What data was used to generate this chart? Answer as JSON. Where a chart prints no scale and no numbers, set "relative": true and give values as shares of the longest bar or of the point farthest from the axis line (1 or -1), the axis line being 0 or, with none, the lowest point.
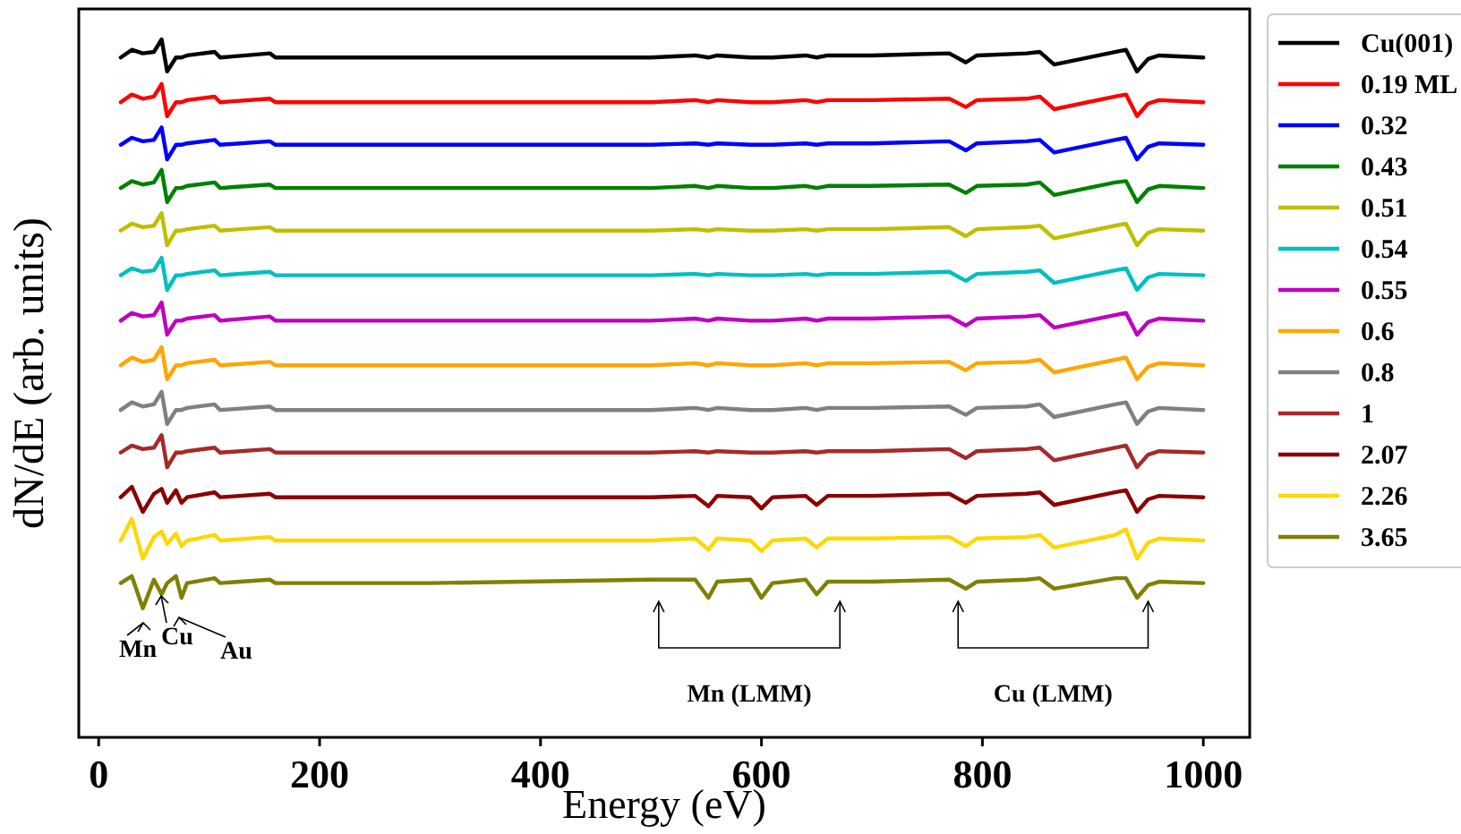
{
  "chart_data": {
    "type": "line",
    "relative": true,
    "xlabel": "Energy (eV)",
    "ylabel": "dN/dE (arb. units)",
    "x": [
      20,
      30,
      40,
      50,
      57,
      62,
      70,
      75,
      80,
      105,
      110,
      155,
      160,
      300,
      500,
      540,
      552,
      560,
      590,
      600,
      610,
      640,
      650,
      660,
      700,
      770,
      785,
      795,
      840,
      852,
      865,
      920,
      930,
      940,
      950,
      960,
      1000
    ],
    "xlim": [
      -18,
      1042
    ],
    "xticks": [
      0,
      200,
      400,
      600,
      800,
      1000
    ],
    "grid": false,
    "legend": "right",
    "tick_labels": "x",
    "annotations": [
      "Mn",
      "Cu",
      "Au",
      "Mn (LMM)",
      "Cu (LMM)"
    ],
    "series": [
      {
        "name": "Cu(001)",
        "color": "#000000",
        "values": [
          0.974,
          0.985,
          0.98,
          0.982,
          1.0,
          0.954,
          0.974,
          0.974,
          0.977,
          0.982,
          0.974,
          0.98,
          0.974,
          0.974,
          0.974,
          0.977,
          0.974,
          0.977,
          0.974,
          0.974,
          0.974,
          0.977,
          0.974,
          0.977,
          0.977,
          0.98,
          0.967,
          0.977,
          0.98,
          0.982,
          0.964,
          0.982,
          0.985,
          0.954,
          0.972,
          0.977,
          0.974
        ]
      },
      {
        "name": "0.19 ML",
        "color": "#ff0000",
        "values": [
          0.91,
          0.921,
          0.915,
          0.918,
          0.936,
          0.89,
          0.91,
          0.91,
          0.913,
          0.918,
          0.91,
          0.915,
          0.91,
          0.91,
          0.91,
          0.913,
          0.91,
          0.913,
          0.91,
          0.91,
          0.91,
          0.913,
          0.91,
          0.913,
          0.913,
          0.915,
          0.903,
          0.913,
          0.915,
          0.918,
          0.9,
          0.918,
          0.921,
          0.89,
          0.908,
          0.913,
          0.91
        ]
      },
      {
        "name": "0.32",
        "color": "#0000ff",
        "values": [
          0.849,
          0.859,
          0.854,
          0.856,
          0.874,
          0.828,
          0.849,
          0.849,
          0.851,
          0.856,
          0.849,
          0.854,
          0.849,
          0.849,
          0.849,
          0.851,
          0.849,
          0.851,
          0.849,
          0.849,
          0.849,
          0.851,
          0.849,
          0.851,
          0.851,
          0.854,
          0.841,
          0.851,
          0.854,
          0.856,
          0.838,
          0.856,
          0.859,
          0.828,
          0.846,
          0.851,
          0.849
        ]
      },
      {
        "name": "0.43",
        "color": "#008000",
        "values": [
          0.787,
          0.797,
          0.792,
          0.795,
          0.813,
          0.767,
          0.787,
          0.787,
          0.79,
          0.795,
          0.787,
          0.792,
          0.787,
          0.787,
          0.787,
          0.79,
          0.787,
          0.79,
          0.787,
          0.787,
          0.787,
          0.79,
          0.787,
          0.79,
          0.79,
          0.792,
          0.78,
          0.79,
          0.792,
          0.795,
          0.777,
          0.795,
          0.797,
          0.767,
          0.785,
          0.79,
          0.787
        ]
      },
      {
        "name": "0.51",
        "color": "#bfbf00",
        "values": [
          0.726,
          0.736,
          0.731,
          0.733,
          0.751,
          0.705,
          0.726,
          0.726,
          0.728,
          0.733,
          0.726,
          0.731,
          0.726,
          0.726,
          0.726,
          0.728,
          0.726,
          0.728,
          0.726,
          0.726,
          0.726,
          0.728,
          0.726,
          0.728,
          0.728,
          0.731,
          0.718,
          0.728,
          0.731,
          0.733,
          0.715,
          0.733,
          0.736,
          0.705,
          0.723,
          0.728,
          0.726
        ]
      },
      {
        "name": "0.54",
        "color": "#00bfbf",
        "values": [
          0.662,
          0.672,
          0.667,
          0.669,
          0.687,
          0.641,
          0.662,
          0.662,
          0.664,
          0.669,
          0.662,
          0.667,
          0.662,
          0.662,
          0.662,
          0.664,
          0.662,
          0.664,
          0.662,
          0.662,
          0.662,
          0.664,
          0.662,
          0.664,
          0.664,
          0.667,
          0.654,
          0.664,
          0.667,
          0.669,
          0.651,
          0.669,
          0.672,
          0.641,
          0.659,
          0.664,
          0.662
        ]
      },
      {
        "name": "0.55",
        "color": "#bf00bf",
        "values": [
          0.597,
          0.608,
          0.603,
          0.605,
          0.623,
          0.577,
          0.597,
          0.597,
          0.6,
          0.605,
          0.597,
          0.603,
          0.597,
          0.597,
          0.597,
          0.6,
          0.597,
          0.6,
          0.597,
          0.597,
          0.597,
          0.6,
          0.597,
          0.6,
          0.6,
          0.603,
          0.59,
          0.6,
          0.603,
          0.605,
          0.587,
          0.605,
          0.608,
          0.577,
          0.595,
          0.6,
          0.597
        ]
      },
      {
        "name": "0.6",
        "color": "#ffa500",
        "values": [
          0.533,
          0.544,
          0.538,
          0.541,
          0.559,
          0.513,
          0.533,
          0.533,
          0.536,
          0.541,
          0.533,
          0.538,
          0.533,
          0.533,
          0.533,
          0.536,
          0.533,
          0.536,
          0.533,
          0.533,
          0.533,
          0.536,
          0.533,
          0.536,
          0.536,
          0.538,
          0.526,
          0.536,
          0.538,
          0.541,
          0.523,
          0.541,
          0.544,
          0.513,
          0.531,
          0.536,
          0.533
        ]
      },
      {
        "name": "0.8",
        "color": "#808080",
        "values": [
          0.469,
          0.48,
          0.474,
          0.477,
          0.495,
          0.449,
          0.469,
          0.469,
          0.472,
          0.477,
          0.469,
          0.474,
          0.469,
          0.469,
          0.469,
          0.472,
          0.469,
          0.472,
          0.469,
          0.469,
          0.469,
          0.472,
          0.469,
          0.472,
          0.472,
          0.474,
          0.462,
          0.472,
          0.474,
          0.477,
          0.459,
          0.477,
          0.48,
          0.449,
          0.467,
          0.472,
          0.469
        ]
      },
      {
        "name": "1",
        "color": "#a52a2a",
        "values": [
          0.408,
          0.418,
          0.413,
          0.415,
          0.433,
          0.387,
          0.408,
          0.408,
          0.41,
          0.415,
          0.408,
          0.413,
          0.408,
          0.408,
          0.408,
          0.41,
          0.408,
          0.41,
          0.408,
          0.408,
          0.408,
          0.41,
          0.408,
          0.41,
          0.41,
          0.413,
          0.4,
          0.41,
          0.413,
          0.415,
          0.397,
          0.415,
          0.418,
          0.387,
          0.405,
          0.41,
          0.408
        ]
      },
      {
        "name": "2.07",
        "color": "#8b0000",
        "values": [
          0.344,
          0.359,
          0.323,
          0.349,
          0.356,
          0.336,
          0.354,
          0.336,
          0.344,
          0.351,
          0.344,
          0.349,
          0.344,
          0.344,
          0.344,
          0.346,
          0.331,
          0.346,
          0.344,
          0.328,
          0.344,
          0.346,
          0.333,
          0.346,
          0.346,
          0.349,
          0.336,
          0.346,
          0.349,
          0.351,
          0.333,
          0.351,
          0.354,
          0.323,
          0.341,
          0.346,
          0.344
        ]
      },
      {
        "name": "2.26",
        "color": "#ffd700",
        "values": [
          0.282,
          0.313,
          0.256,
          0.287,
          0.295,
          0.277,
          0.292,
          0.274,
          0.282,
          0.29,
          0.282,
          0.287,
          0.282,
          0.282,
          0.282,
          0.285,
          0.269,
          0.285,
          0.282,
          0.267,
          0.282,
          0.285,
          0.272,
          0.285,
          0.285,
          0.287,
          0.274,
          0.285,
          0.287,
          0.29,
          0.272,
          0.29,
          0.298,
          0.256,
          0.279,
          0.285,
          0.282
        ]
      },
      {
        "name": "3.65",
        "color": "#808000",
        "values": [
          0.221,
          0.231,
          0.185,
          0.226,
          0.205,
          0.221,
          0.231,
          0.2,
          0.221,
          0.228,
          0.221,
          0.226,
          0.221,
          0.221,
          0.226,
          0.226,
          0.2,
          0.223,
          0.226,
          0.2,
          0.221,
          0.226,
          0.205,
          0.223,
          0.223,
          0.226,
          0.213,
          0.223,
          0.226,
          0.228,
          0.213,
          0.228,
          0.228,
          0.2,
          0.218,
          0.223,
          0.221
        ]
      }
    ]
  }
}
